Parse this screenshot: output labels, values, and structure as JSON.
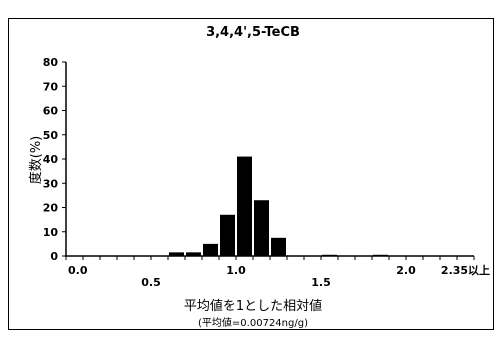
{
  "chart_data": {
    "type": "bar",
    "title": "3,4,4',5-TeCB",
    "ylabel": "度数(%)",
    "xlabel": "平均値を1とした相対値",
    "note": "(平均値=0.00724ng/g)",
    "ylim": [
      0,
      80
    ],
    "yticks": [
      0,
      10,
      20,
      30,
      40,
      50,
      60,
      70,
      80
    ],
    "xlim": [
      0,
      2.4
    ],
    "xticks": [
      {
        "value": 0.0,
        "label": "0.0"
      },
      {
        "value": 0.5,
        "label": "0.5"
      },
      {
        "value": 1.0,
        "label": "1.0"
      },
      {
        "value": 1.5,
        "label": "1.5"
      },
      {
        "value": 2.0,
        "label": "2.0"
      },
      {
        "value": 2.35,
        "label": "2.35以上"
      }
    ],
    "bin_width": 0.1,
    "bins": [
      0.0,
      0.1,
      0.2,
      0.3,
      0.4,
      0.5,
      0.6,
      0.7,
      0.8,
      0.9,
      1.0,
      1.1,
      1.2,
      1.3,
      1.4,
      1.5,
      1.6,
      1.7,
      1.8,
      1.9,
      2.0,
      2.1,
      2.2,
      2.3
    ],
    "values": [
      0,
      0,
      0,
      0,
      0,
      0,
      1.5,
      1.5,
      5,
      17,
      41,
      23,
      7.5,
      0,
      0,
      0.5,
      0,
      0,
      0.5,
      0,
      0,
      0,
      0,
      0
    ],
    "bar_color": "#000000",
    "grid": false
  }
}
